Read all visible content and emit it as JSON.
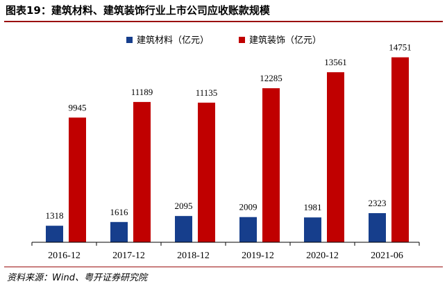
{
  "title": "图表19：建筑材料、建筑装饰行业上市公司应收账款规模",
  "source": "资料来源：Wind、粤开证券研究院",
  "colors": {
    "accent_rule": "#9a0d0d"
  },
  "chart_data": {
    "type": "bar",
    "categories": [
      "2016-12",
      "2017-12",
      "2018-12",
      "2019-12",
      "2020-12",
      "2021-06"
    ],
    "series": [
      {
        "name": "建筑材料（亿元）",
        "color": "#163e8c",
        "values": [
          1318,
          1616,
          2095,
          2009,
          1981,
          2323
        ]
      },
      {
        "name": "建筑装饰（亿元）",
        "color": "#c00000",
        "values": [
          9945,
          11189,
          11135,
          12285,
          13561,
          14751
        ]
      }
    ],
    "ylim": [
      0,
      16000
    ],
    "grid": false,
    "legend_position": "top-center",
    "data_labels": true
  }
}
